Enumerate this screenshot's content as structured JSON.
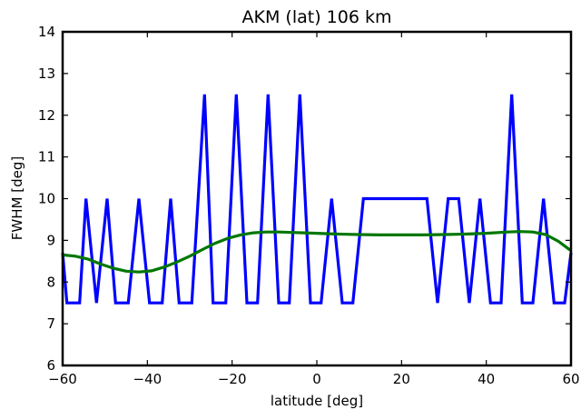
{
  "chart_data": {
    "type": "line",
    "title": "AKM (lat) 106 km",
    "xlabel": "latitude [deg]",
    "ylabel": "FWHM [deg]",
    "xlim": [
      -60,
      60
    ],
    "ylim": [
      6,
      14
    ],
    "xticks": [
      -60,
      -40,
      -20,
      0,
      20,
      40,
      60
    ],
    "yticks": [
      6,
      7,
      8,
      9,
      10,
      11,
      12,
      13,
      14
    ],
    "xtick_labels": [
      "−60",
      "−40",
      "−20",
      "0",
      "20",
      "40",
      "60"
    ],
    "ytick_labels": [
      "6",
      "7",
      "8",
      "9",
      "10",
      "11",
      "12",
      "13",
      "14"
    ],
    "grid": false,
    "series": [
      {
        "color": "#0000ff",
        "x": [
          -60,
          -59,
          -56,
          -54.5,
          -52,
          -49.5,
          -47.5,
          -44.5,
          -42,
          -39.5,
          -36.5,
          -34.5,
          -32.5,
          -29.5,
          -26.5,
          -24.5,
          -21.5,
          -19,
          -16.5,
          -14,
          -11.5,
          -9,
          -6.5,
          -4,
          -1.5,
          1,
          3.5,
          6,
          8.5,
          11,
          26,
          28.5,
          31,
          33.5,
          36,
          38.5,
          41,
          43.5,
          46,
          48.5,
          51,
          53.5,
          56,
          58.5,
          60
        ],
        "y": [
          8.7,
          7.5,
          7.5,
          10,
          7.5,
          10,
          7.5,
          7.5,
          10,
          7.5,
          7.5,
          10,
          7.5,
          7.5,
          12.5,
          7.5,
          7.5,
          12.5,
          7.5,
          7.5,
          12.5,
          7.5,
          7.5,
          12.5,
          7.5,
          7.5,
          10,
          7.5,
          7.5,
          10,
          10,
          7.5,
          10,
          10,
          7.5,
          10,
          7.5,
          7.5,
          12.5,
          7.5,
          7.5,
          10,
          7.5,
          7.5,
          8.7
        ]
      },
      {
        "color": "#007700",
        "x": [
          -60,
          -57,
          -54,
          -51,
          -48,
          -45,
          -42,
          -39,
          -36,
          -33,
          -30,
          -27,
          -24,
          -21,
          -18,
          -15,
          -12,
          -9,
          -6,
          -3,
          0,
          5,
          10,
          15,
          20,
          25,
          30,
          35,
          40,
          45,
          48,
          51,
          54,
          57,
          60
        ],
        "y": [
          8.65,
          8.62,
          8.55,
          8.43,
          8.33,
          8.26,
          8.24,
          8.27,
          8.36,
          8.48,
          8.62,
          8.78,
          8.93,
          9.05,
          9.13,
          9.18,
          9.2,
          9.2,
          9.19,
          9.18,
          9.17,
          9.15,
          9.14,
          9.13,
          9.13,
          9.13,
          9.14,
          9.15,
          9.17,
          9.2,
          9.21,
          9.2,
          9.14,
          8.98,
          8.75
        ]
      }
    ]
  }
}
